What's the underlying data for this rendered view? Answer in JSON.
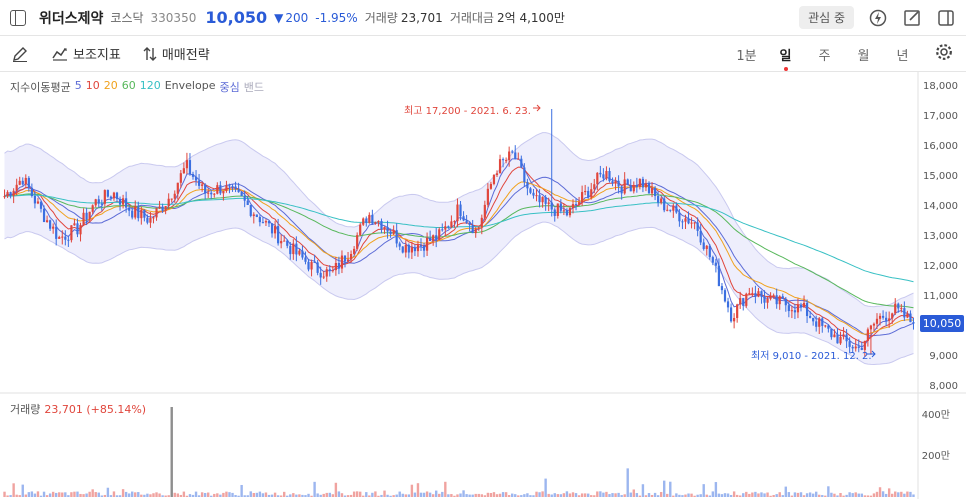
{
  "header": {
    "stock_name": "위더스제약",
    "market": "코스닥",
    "code": "330350",
    "price": "10,050",
    "change_arrow": "▼",
    "change": "200",
    "change_pct": "-1.95%",
    "volume_label": "거래량",
    "volume": "23,701",
    "amount_label": "거래대금",
    "amount": "2억 4,100만",
    "watch_label": "관심 중"
  },
  "toolbar": {
    "indicators_label": "보조지표",
    "strategy_label": "매매전략",
    "periods": [
      "1분",
      "일",
      "주",
      "월",
      "년"
    ],
    "active_period": "일"
  },
  "legend": {
    "ma_label": "지수이동평균",
    "ma_values": [
      "5",
      "10",
      "20",
      "60",
      "120"
    ],
    "ma_colors": [
      "#5c6bd6",
      "#e0463c",
      "#f0a21e",
      "#58b85c",
      "#38c0c4"
    ],
    "envelope_label": "Envelope",
    "env_center": "중심",
    "env_band": "밴드"
  },
  "annotations": {
    "high": "최고 17,200 - 2021. 6. 23.",
    "low": "최저 9,010 - 2021. 12. 2."
  },
  "volume_panel": {
    "label": "거래량",
    "value": "23,701 (+85.14%)"
  },
  "current_price_tag": "10,050",
  "colors": {
    "up": "#e0463c",
    "down": "#3b6fe0",
    "accent": "#2a5bd7"
  },
  "chart_data": {
    "type": "candlestick",
    "price_axis": {
      "ticks": [
        "18,000",
        "17,000",
        "16,000",
        "15,000",
        "14,000",
        "13,000",
        "12,000",
        "11,000",
        "10,000",
        "9,000",
        "8,000"
      ],
      "range": [
        8000,
        18000
      ]
    },
    "volume_axis": {
      "ticks": [
        "400만",
        "200만"
      ]
    },
    "close_path": [
      14300,
      14900,
      13800,
      12900,
      13200,
      14100,
      14400,
      13800,
      13500,
      14200,
      15300,
      14400,
      14600,
      14200,
      13600,
      13000,
      12400,
      11900,
      11700,
      12500,
      13700,
      13300,
      12600,
      12700,
      13000,
      13900,
      13100,
      15200,
      15700,
      14200,
      13900,
      13700,
      14400,
      15100,
      14600,
      14800,
      14100,
      13700,
      13400,
      12000,
      10300,
      11200,
      10800,
      10700,
      10500,
      9900,
      9500,
      9200,
      10200,
      10500,
      10050
    ],
    "volume_spikes": [
      [
        170,
        4400000
      ],
      [
        545,
        900000
      ],
      [
        627,
        1400000
      ],
      [
        663,
        800000
      ]
    ]
  }
}
